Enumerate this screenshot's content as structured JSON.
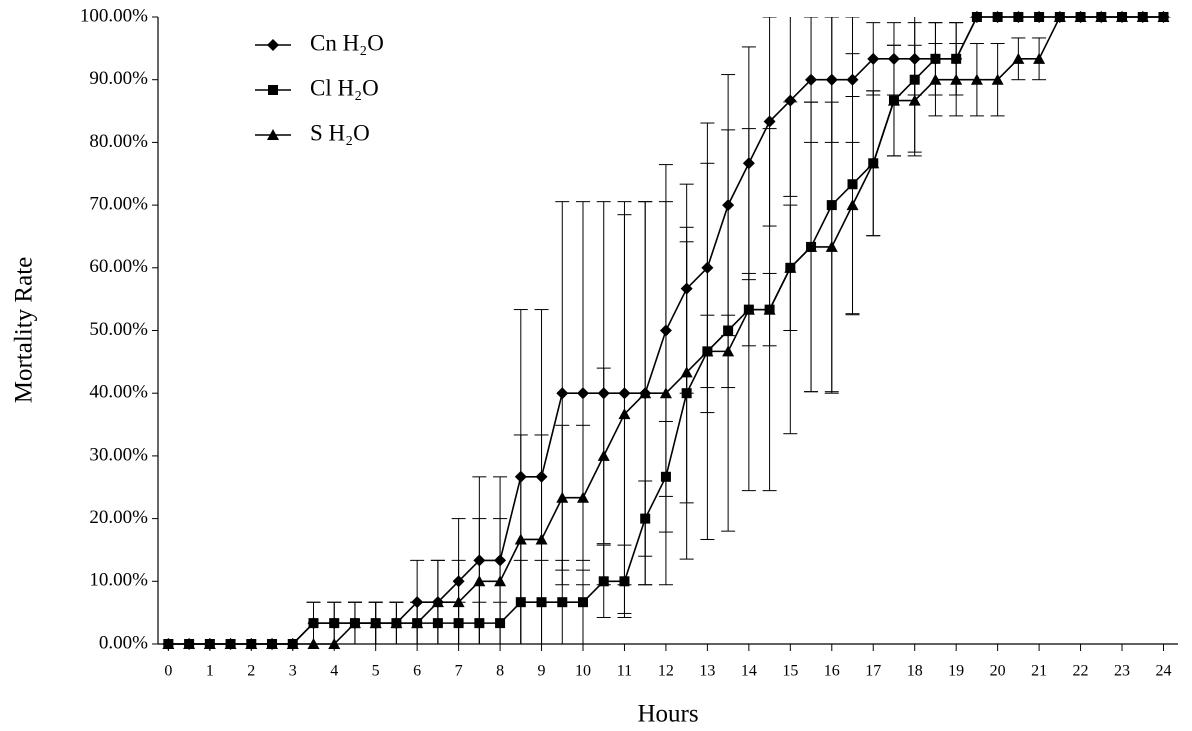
{
  "chart_data": {
    "type": "line",
    "x_label": "Hours",
    "y_label": "Mortality Rate",
    "x": [
      0,
      0.5,
      1,
      1.5,
      2,
      2.5,
      3,
      3.5,
      4,
      4.5,
      5,
      5.5,
      6,
      6.5,
      7,
      7.5,
      8,
      8.5,
      9,
      9.5,
      10,
      10.5,
      11,
      11.5,
      12,
      12.5,
      13,
      13.5,
      14,
      14.5,
      15,
      15.5,
      16,
      16.5,
      17,
      17.5,
      18,
      18.5,
      19,
      19.5,
      20,
      20.5,
      21,
      21.5,
      22,
      22.5,
      23,
      23.5,
      24
    ],
    "xlim": [
      -0.25,
      24.35
    ],
    "xticks": [
      0,
      1,
      2,
      3,
      4,
      5,
      6,
      7,
      8,
      9,
      10,
      11,
      12,
      13,
      14,
      15,
      16,
      17,
      18,
      19,
      20,
      21,
      22,
      23,
      24
    ],
    "ylim": [
      0,
      100
    ],
    "yticks": [
      {
        "value": 0,
        "label": "0.00%"
      },
      {
        "value": 10,
        "label": "10.00%"
      },
      {
        "value": 20,
        "label": "20.00%"
      },
      {
        "value": 30,
        "label": "30.00%"
      },
      {
        "value": 40,
        "label": "40.00%"
      },
      {
        "value": 50,
        "label": "50.00%"
      },
      {
        "value": 60,
        "label": "60.00%"
      },
      {
        "value": 70,
        "label": "70.00%"
      },
      {
        "value": 80,
        "label": "80.00%"
      },
      {
        "value": 90,
        "label": "90.00%"
      },
      {
        "value": 100,
        "label": "100.00%"
      }
    ],
    "grid": false,
    "legend": "top-left",
    "series": [
      {
        "name": "Cn H₂O",
        "color": "#000000",
        "marker": "diamond",
        "values": [
          0,
          0,
          0,
          0,
          0,
          0,
          0,
          3.33,
          3.33,
          3.33,
          3.33,
          3.33,
          6.67,
          6.67,
          10,
          13.33,
          13.33,
          26.67,
          26.67,
          40,
          40,
          40,
          40,
          40,
          50,
          56.67,
          60,
          70,
          76.67,
          83.33,
          86.67,
          90,
          90,
          90,
          93.33,
          93.33,
          93.33,
          93.33,
          93.33,
          100,
          100,
          100,
          100,
          100,
          100,
          100,
          100,
          100,
          100
        ],
        "errors": [
          0,
          0,
          0,
          0,
          0,
          0,
          0,
          3.33,
          3.33,
          3.33,
          3.33,
          3.33,
          6.67,
          6.67,
          10,
          13.33,
          13.33,
          26.67,
          26.67,
          30.55,
          30.55,
          30.55,
          30.55,
          30.55,
          26.46,
          16.67,
          23.09,
          20.82,
          18.56,
          16.67,
          15.28,
          10,
          10,
          10,
          5.77,
          5.77,
          5.77,
          5.77,
          5.77,
          0,
          0,
          0,
          0,
          0,
          0,
          0,
          0,
          0,
          0
        ]
      },
      {
        "name": "Cl H₂O",
        "color": "#000000",
        "marker": "square",
        "values": [
          0,
          0,
          0,
          0,
          0,
          0,
          0,
          3.33,
          3.33,
          3.33,
          3.33,
          3.33,
          3.33,
          3.33,
          3.33,
          3.33,
          3.33,
          6.67,
          6.67,
          6.67,
          6.67,
          10,
          10,
          20,
          26.67,
          40,
          46.67,
          50,
          53.33,
          53.33,
          60,
          63.33,
          70,
          73.33,
          76.67,
          86.67,
          90,
          93.33,
          93.33,
          100,
          100,
          100,
          100,
          100,
          100,
          100,
          100,
          100,
          100
        ],
        "errors": [
          0,
          0,
          0,
          0,
          0,
          0,
          0,
          3.33,
          3.33,
          3.33,
          3.33,
          3.33,
          3.33,
          3.33,
          3.33,
          3.33,
          3.33,
          6.67,
          6.67,
          6.67,
          6.67,
          5.77,
          5.77,
          6,
          8.82,
          26.46,
          30,
          32,
          28.87,
          28.87,
          26.46,
          23.09,
          30,
          20.82,
          11.55,
          8.82,
          11.55,
          5.77,
          5.77,
          0,
          0,
          0,
          0,
          0,
          0,
          0,
          0,
          0,
          0
        ]
      },
      {
        "name": "S H₂O",
        "color": "#000000",
        "marker": "triangle",
        "values": [
          0,
          0,
          0,
          0,
          0,
          0,
          0,
          0,
          0,
          3.33,
          3.33,
          3.33,
          3.33,
          6.67,
          6.67,
          10,
          10,
          16.67,
          16.67,
          23.33,
          23.33,
          30,
          36.67,
          40,
          40,
          43.33,
          46.67,
          46.67,
          53.33,
          53.33,
          60,
          63.33,
          63.33,
          70,
          76.67,
          86.67,
          86.67,
          90,
          90,
          90,
          90,
          93.33,
          93.33,
          100,
          100,
          100,
          100,
          100,
          100
        ],
        "errors": [
          0,
          0,
          0,
          0,
          0,
          0,
          0,
          0,
          0,
          3.33,
          3.33,
          3.33,
          3.33,
          6.67,
          6.67,
          10,
          10,
          16.67,
          16.67,
          11.55,
          11.55,
          14,
          31.8,
          30.55,
          30.55,
          20.82,
          5.77,
          5.77,
          5.77,
          5.77,
          10,
          23.09,
          23.09,
          17.32,
          11.55,
          8.82,
          8.82,
          5.77,
          5.77,
          5.77,
          5.77,
          3.33,
          3.33,
          0,
          0,
          0,
          0,
          0,
          0
        ]
      }
    ]
  }
}
